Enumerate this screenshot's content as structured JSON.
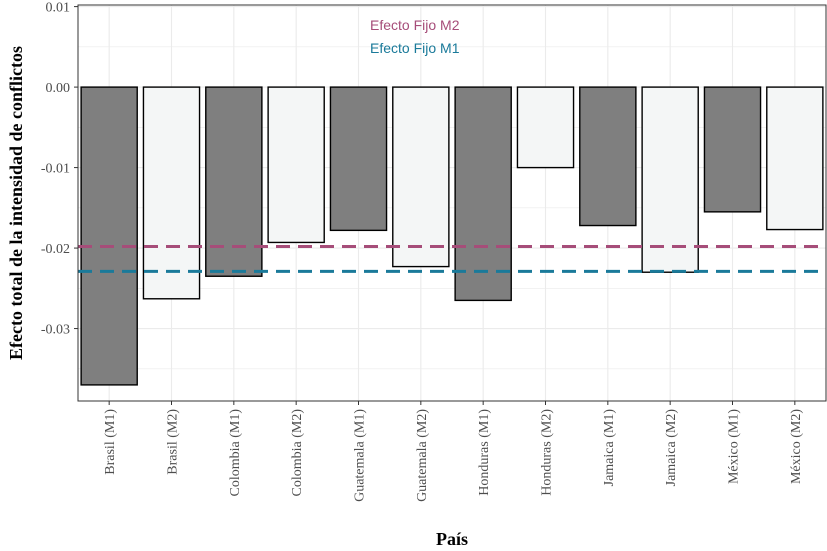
{
  "chart_data": {
    "type": "bar",
    "xlabel": "País",
    "ylabel": "Efecto total de la intensidad de conflictos",
    "categories": [
      "Brasil (M1)",
      "Brasil (M2)",
      "Colombia (M1)",
      "Colombia (M2)",
      "Guatemala (M1)",
      "Guatemala (M2)",
      "Honduras (M1)",
      "Honduras (M2)",
      "Jamaica (M1)",
      "Jamaica (M2)",
      "México (M1)",
      "México (M2)"
    ],
    "values": [
      -0.037,
      -0.0263,
      -0.0235,
      -0.0193,
      -0.0178,
      -0.0223,
      -0.0265,
      -0.01,
      -0.0172,
      -0.023,
      -0.0155,
      -0.0177
    ],
    "bar_colors": [
      "#7f7f7f",
      "#f4f6f6",
      "#7f7f7f",
      "#f4f6f6",
      "#7f7f7f",
      "#f4f6f6",
      "#7f7f7f",
      "#f4f6f6",
      "#7f7f7f",
      "#f4f6f6",
      "#7f7f7f",
      "#f4f6f6"
    ],
    "ylim": [
      -0.039,
      0.0102
    ],
    "yticks": [
      0.01,
      0.0,
      -0.01,
      -0.02,
      -0.03
    ],
    "ytick_labels": [
      "0.01",
      "0.00",
      "-0.01",
      "-0.02",
      "-0.03"
    ],
    "reference_lines": [
      {
        "label": "Efecto Fijo M2",
        "value": -0.0198,
        "color": "#a64d79",
        "style": "dashed"
      },
      {
        "label": "Efecto Fijo M1",
        "value": -0.0229,
        "color": "#1a7a9a",
        "style": "dashed"
      }
    ],
    "grid": true
  }
}
